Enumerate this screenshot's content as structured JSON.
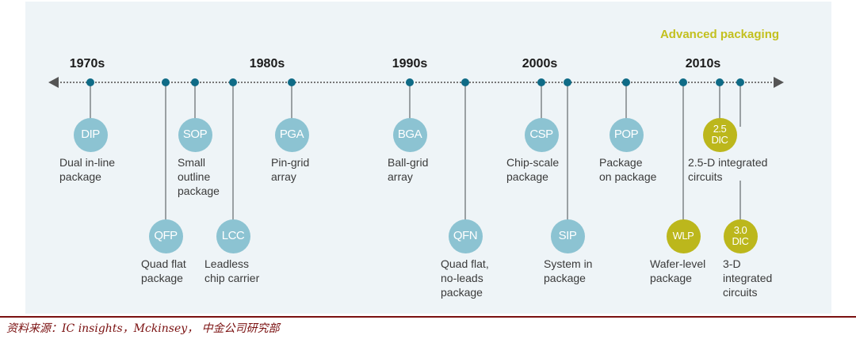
{
  "header": {
    "advanced_label": "Advanced packaging"
  },
  "decades": [
    "1970s",
    "1980s",
    "1990s",
    "2000s",
    "2010s"
  ],
  "nodes": [
    {
      "abbr": "DIP",
      "label": "Dual in-line\npackage",
      "kind": "standard"
    },
    {
      "abbr": "QFP",
      "label": "Quad flat\npackage",
      "kind": "standard"
    },
    {
      "abbr": "SOP",
      "label": "Small\noutline\npackage",
      "kind": "standard"
    },
    {
      "abbr": "LCC",
      "label": "Leadless\nchip carrier",
      "kind": "standard"
    },
    {
      "abbr": "PGA",
      "label": "Pin-grid\narray",
      "kind": "standard"
    },
    {
      "abbr": "BGA",
      "label": "Ball-grid\narray",
      "kind": "standard"
    },
    {
      "abbr": "QFN",
      "label": "Quad flat,\nno-leads\npackage",
      "kind": "standard"
    },
    {
      "abbr": "CSP",
      "label": "Chip-scale\npackage",
      "kind": "standard"
    },
    {
      "abbr": "SIP",
      "label": "System in\npackage",
      "kind": "standard"
    },
    {
      "abbr": "POP",
      "label": "Package\non package",
      "kind": "standard"
    },
    {
      "abbr": "WLP",
      "label": "Wafer-level\npackage",
      "kind": "advanced"
    },
    {
      "abbr": "2.5\nDIC",
      "label": "2.5-D integrated\ncircuits",
      "kind": "advanced"
    },
    {
      "abbr": "3.0\nDIC",
      "label": "3-D\nintegrated\ncircuits",
      "kind": "advanced"
    }
  ],
  "colors": {
    "standard": "#8cc3d2",
    "advanced": "#bcb71c",
    "dot": "#0f6b86",
    "advanced_text": "#c3c01e",
    "source_rule": "#7a1010"
  },
  "footer": {
    "source": "资料来源：IC insights，Mckinsey， 中金公司研究部"
  }
}
